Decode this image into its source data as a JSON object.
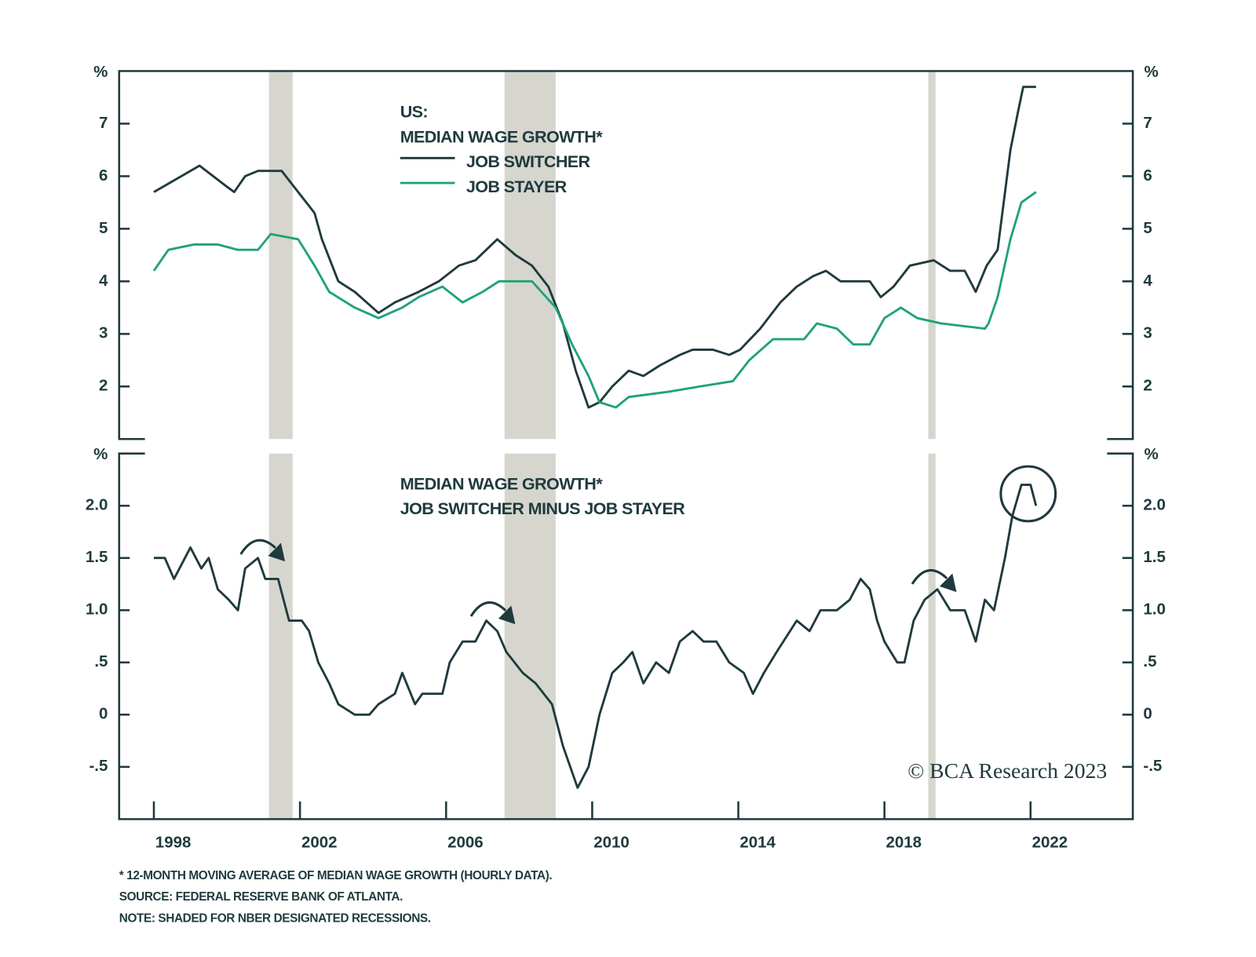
{
  "chart_data": [
    {
      "type": "line",
      "annotations": [
        "US:",
        "MEDIAN WAGE GROWTH*"
      ],
      "ylabel": "%",
      "xlim": [
        1997.05,
        2024.8
      ],
      "ylim": [
        1,
        8
      ],
      "yticks": [
        2,
        3,
        4,
        5,
        6,
        7
      ],
      "shaded_periods": [
        [
          2001.15,
          2001.8
        ],
        [
          2007.6,
          2009.0
        ],
        [
          2019.2,
          2019.4
        ]
      ],
      "series": [
        {
          "name": "JOB SWITCHER",
          "color": "#1f3a3d",
          "x": [
            1998.0,
            1999.0,
            1999.25,
            2000.0,
            2000.2,
            2000.5,
            2000.85,
            2001.5,
            2001.95,
            2002.4,
            2002.6,
            2003.05,
            2003.5,
            2004.15,
            2004.6,
            2005.25,
            2005.8,
            2006.35,
            2006.8,
            2007.4,
            2007.9,
            2008.35,
            2008.8,
            2009.2,
            2009.55,
            2009.9,
            2010.2,
            2010.55,
            2011.0,
            2011.4,
            2011.85,
            2012.4,
            2012.75,
            2013.3,
            2013.75,
            2014.05,
            2014.6,
            2015.15,
            2015.6,
            2016.05,
            2016.4,
            2016.8,
            2017.6,
            2017.9,
            2018.25,
            2018.7,
            2019.35,
            2019.8,
            2020.2,
            2020.5,
            2020.8,
            2021.1,
            2021.45,
            2021.65,
            2021.8,
            2022.15
          ],
          "values": [
            5.7,
            6.1,
            6.2,
            5.8,
            5.7,
            6.0,
            6.1,
            6.1,
            5.7,
            5.3,
            4.8,
            4.0,
            3.8,
            3.4,
            3.6,
            3.8,
            4.0,
            4.3,
            4.4,
            4.8,
            4.5,
            4.3,
            3.9,
            3.2,
            2.3,
            1.6,
            1.7,
            2.0,
            2.3,
            2.2,
            2.4,
            2.6,
            2.7,
            2.7,
            2.6,
            2.7,
            3.1,
            3.6,
            3.9,
            4.1,
            4.2,
            4.0,
            4.0,
            3.7,
            3.9,
            4.3,
            4.4,
            4.2,
            4.2,
            3.8,
            4.3,
            4.6,
            6.5,
            7.2,
            7.7,
            7.7
          ]
        },
        {
          "name": "JOB STAYER",
          "color": "#1fa27a",
          "x": [
            1998.0,
            1998.4,
            1999.1,
            1999.75,
            2000.3,
            2000.85,
            2001.2,
            2001.95,
            2002.4,
            2002.8,
            2003.5,
            2004.15,
            2004.8,
            2005.25,
            2005.9,
            2006.45,
            2007.0,
            2007.45,
            2008.35,
            2009.0,
            2009.45,
            2009.9,
            2010.2,
            2010.65,
            2011.0,
            2012.1,
            2012.95,
            2013.85,
            2014.3,
            2014.95,
            2015.8,
            2016.15,
            2016.7,
            2017.15,
            2017.6,
            2018.0,
            2018.45,
            2018.9,
            2019.55,
            2020.75,
            2020.85,
            2021.1,
            2021.45,
            2021.75,
            2022.15
          ],
          "values": [
            4.2,
            4.6,
            4.7,
            4.7,
            4.6,
            4.6,
            4.9,
            4.8,
            4.3,
            3.8,
            3.5,
            3.3,
            3.5,
            3.7,
            3.9,
            3.6,
            3.8,
            4.0,
            4.0,
            3.5,
            2.8,
            2.2,
            1.7,
            1.6,
            1.8,
            1.9,
            2.0,
            2.1,
            2.5,
            2.9,
            2.9,
            3.2,
            3.1,
            2.8,
            2.8,
            3.3,
            3.5,
            3.3,
            3.2,
            3.1,
            3.2,
            3.7,
            4.8,
            5.5,
            5.7
          ]
        }
      ]
    },
    {
      "type": "line",
      "annotations": [
        "MEDIAN WAGE GROWTH*",
        "JOB SWITCHER MINUS JOB STAYER"
      ],
      "ylabel": "%",
      "xlim": [
        1997.05,
        2024.8
      ],
      "xticks": [
        1998,
        2002,
        2006,
        2010,
        2014,
        2018,
        2022
      ],
      "ylim": [
        -1,
        2.5
      ],
      "yticks": [
        {
          "value": -0.5,
          "label": "-.5"
        },
        0,
        {
          "value": 0.5,
          "label": ".5"
        },
        {
          "value": 1,
          "label": "1.0"
        },
        1.5,
        {
          "value": 2,
          "label": "2.0"
        }
      ],
      "series": [
        {
          "name": "JOB SWITCHER MINUS JOB STAYER",
          "color": "#1f3a3d",
          "x": [
            1998.0,
            1998.3,
            1998.55,
            1999.0,
            1999.3,
            1999.5,
            1999.75,
            2000.05,
            2000.3,
            2000.5,
            2000.85,
            2001.05,
            2001.4,
            2001.7,
            2002.05,
            2002.25,
            2002.5,
            2002.8,
            2003.05,
            2003.5,
            2003.9,
            2004.15,
            2004.6,
            2004.8,
            2005.15,
            2005.35,
            2005.9,
            2006.1,
            2006.45,
            2006.8,
            2007.1,
            2007.4,
            2007.65,
            2008.1,
            2008.45,
            2008.9,
            2009.2,
            2009.6,
            2009.9,
            2010.2,
            2010.55,
            2010.85,
            2011.1,
            2011.4,
            2011.75,
            2012.1,
            2012.4,
            2012.75,
            2013.05,
            2013.4,
            2013.75,
            2014.15,
            2014.4,
            2014.7,
            2015.05,
            2015.6,
            2015.95,
            2016.25,
            2016.7,
            2017.05,
            2017.35,
            2017.6,
            2017.8,
            2018.0,
            2018.35,
            2018.55,
            2018.8,
            2019.1,
            2019.45,
            2019.8,
            2020.2,
            2020.5,
            2020.75,
            2021.0,
            2021.3,
            2021.5,
            2021.75,
            2022.0,
            2022.15
          ],
          "values": [
            1.5,
            1.5,
            1.3,
            1.6,
            1.4,
            1.5,
            1.2,
            1.1,
            1.0,
            1.4,
            1.5,
            1.3,
            1.3,
            0.9,
            0.9,
            0.8,
            0.5,
            0.3,
            0.1,
            0.0,
            0.0,
            0.1,
            0.2,
            0.4,
            0.1,
            0.2,
            0.2,
            0.5,
            0.7,
            0.7,
            0.9,
            0.8,
            0.6,
            0.4,
            0.3,
            0.1,
            -0.3,
            -0.7,
            -0.5,
            0.0,
            0.4,
            0.5,
            0.6,
            0.3,
            0.5,
            0.4,
            0.7,
            0.8,
            0.7,
            0.7,
            0.5,
            0.4,
            0.2,
            0.4,
            0.6,
            0.9,
            0.8,
            1.0,
            1.0,
            1.1,
            1.3,
            1.2,
            0.9,
            0.7,
            0.5,
            0.5,
            0.9,
            1.1,
            1.2,
            1.0,
            1.0,
            0.7,
            1.1,
            1.0,
            1.5,
            1.9,
            2.2,
            2.2,
            2.0
          ]
        }
      ]
    }
  ],
  "credit": "© BCA Research 2023",
  "notes": [
    "* 12-MONTH MOVING AVERAGE OF MEDIAN WAGE GROWTH (HOURLY DATA).",
    "SOURCE: FEDERAL RESERVE BANK OF ATLANTA.",
    "NOTE: SHADED FOR NBER DESIGNATED RECESSIONS."
  ]
}
